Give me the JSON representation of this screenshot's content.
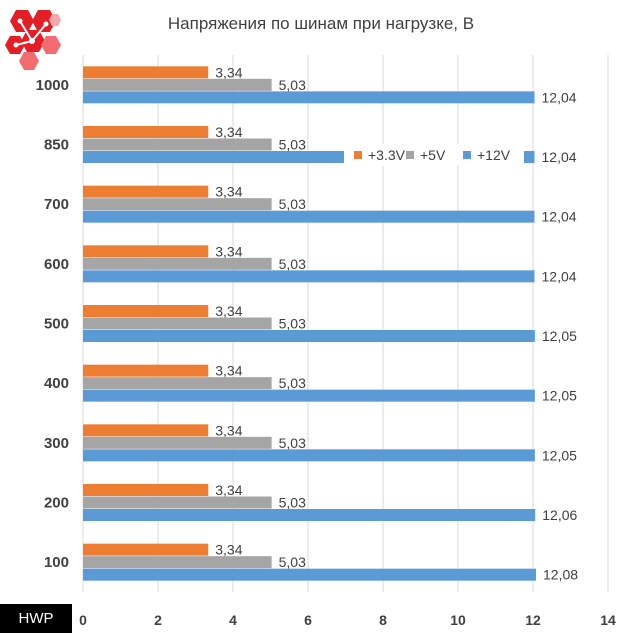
{
  "chart_data": {
    "type": "bar",
    "orientation": "horizontal",
    "title": "Напряжения по шинам при нагрузке, В",
    "categories": [
      "1000",
      "850",
      "700",
      "600",
      "500",
      "400",
      "300",
      "200",
      "100"
    ],
    "series": [
      {
        "name": "+3.3V",
        "color": "#ED7D31",
        "values": [
          3.34,
          3.34,
          3.34,
          3.34,
          3.34,
          3.34,
          3.34,
          3.34,
          3.34
        ],
        "labels": [
          "3,34",
          "3,34",
          "3,34",
          "3,34",
          "3,34",
          "3,34",
          "3,34",
          "3,34",
          "3,34"
        ]
      },
      {
        "name": "+5V",
        "color": "#A5A5A5",
        "values": [
          5.03,
          5.03,
          5.03,
          5.03,
          5.03,
          5.03,
          5.03,
          5.03,
          5.03
        ],
        "labels": [
          "5,03",
          "5,03",
          "5,03",
          "5,03",
          "5,03",
          "5,03",
          "5,03",
          "5,03",
          "5,03"
        ]
      },
      {
        "name": "+12V",
        "color": "#5B9BD5",
        "values": [
          12.04,
          12.04,
          12.04,
          12.04,
          12.05,
          12.05,
          12.05,
          12.06,
          12.08
        ],
        "labels": [
          "12,04",
          "12,04",
          "12,04",
          "12,04",
          "12,05",
          "12,05",
          "12,05",
          "12,06",
          "12,08"
        ]
      }
    ],
    "xlim": [
      0,
      14
    ],
    "xticks": [
      "0",
      "2",
      "4",
      "6",
      "8",
      "10",
      "12",
      "14"
    ],
    "grid": true,
    "legend_position": "top-right"
  },
  "watermark": "HWP"
}
